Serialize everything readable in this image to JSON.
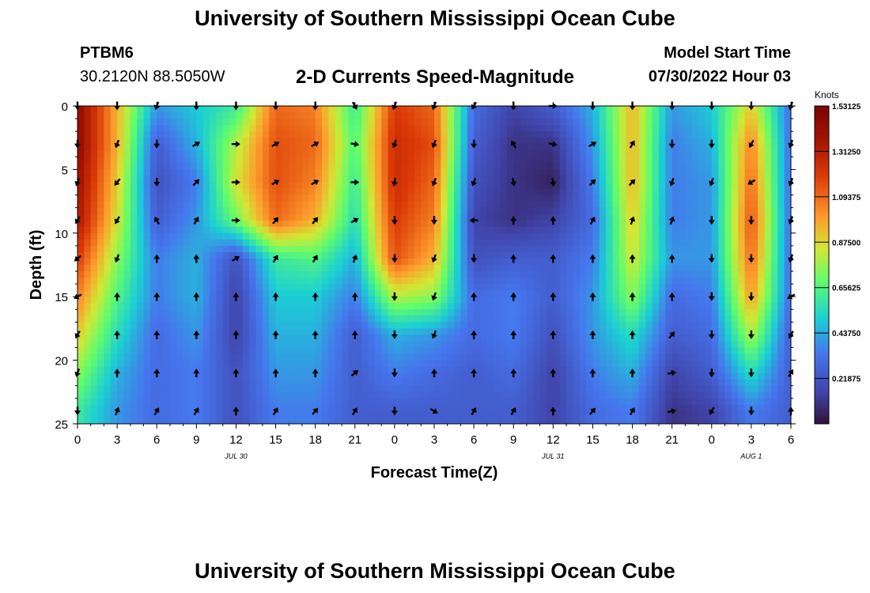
{
  "header": {
    "title": "University of Southern Mississippi Ocean Cube",
    "station_id": "PTBM6",
    "station_coords": "30.2120N  88.5050W",
    "subtitle": "2-D Currents Speed-Magnitude",
    "model_label": "Model Start Time",
    "model_time": "07/30/2022 Hour 03"
  },
  "footer": {
    "title": "University of Southern Mississippi Ocean Cube"
  },
  "chart_data": {
    "type": "heatmap",
    "title": "2-D Currents Speed-Magnitude",
    "xlabel": "Forecast Time(Z)",
    "ylabel": "Depth (ft)",
    "xlim": [
      0,
      54
    ],
    "ylim": [
      0,
      25
    ],
    "x_ticks": [
      0,
      3,
      6,
      9,
      12,
      15,
      18,
      21,
      24,
      27,
      30,
      33,
      36,
      39,
      42,
      45,
      48,
      51,
      54
    ],
    "x_tick_labels": [
      "0",
      "3",
      "6",
      "9",
      "12",
      "15",
      "18",
      "21",
      "0",
      "3",
      "6",
      "9",
      "12",
      "15",
      "18",
      "21",
      "0",
      "3",
      "6"
    ],
    "y_ticks": [
      0,
      5,
      10,
      15,
      20,
      25
    ],
    "y_tick_labels": [
      "0",
      "5",
      "10",
      "15",
      "20",
      "25"
    ],
    "date_labels": [
      {
        "text": "JUL 30",
        "x": 12
      },
      {
        "text": "JUL 31",
        "x": 36
      },
      {
        "text": "AUG 1",
        "x": 51
      }
    ],
    "colorbar": {
      "title": "Knots",
      "vmin": 0,
      "vmax": 1.53125,
      "ticks": [
        1.53125,
        1.3125,
        1.09375,
        0.875,
        0.65625,
        0.4375,
        0.21875
      ],
      "tick_labels": [
        "1.53125",
        "1.31250",
        "1.09375",
        "0.87500",
        "0.65625",
        "0.43750",
        "0.21875"
      ]
    },
    "time_columns": [
      0,
      3,
      6,
      9,
      12,
      15,
      18,
      21,
      24,
      27,
      30,
      33,
      36,
      39,
      42,
      45,
      48,
      51,
      54
    ],
    "depth_rows": [
      0,
      3,
      6,
      9,
      12,
      15,
      18,
      21,
      24
    ],
    "speed_knots": [
      [
        1.45,
        0.95,
        0.4,
        0.5,
        0.6,
        1.1,
        1.05,
        0.6,
        1.2,
        1.1,
        0.3,
        0.15,
        0.25,
        0.45,
        0.95,
        0.4,
        0.5,
        0.9,
        0.3
      ],
      [
        1.45,
        0.95,
        0.25,
        0.45,
        0.8,
        1.15,
        1.1,
        0.65,
        1.25,
        1.15,
        0.25,
        0.1,
        0.1,
        0.4,
        0.95,
        0.35,
        0.45,
        1.05,
        0.3
      ],
      [
        1.4,
        0.9,
        0.2,
        0.35,
        0.85,
        1.15,
        1.05,
        0.6,
        1.25,
        1.1,
        0.2,
        0.1,
        0.05,
        0.35,
        0.95,
        0.35,
        0.4,
        1.1,
        0.3
      ],
      [
        1.35,
        0.85,
        0.25,
        0.4,
        0.7,
        1.1,
        0.95,
        0.55,
        1.2,
        1.05,
        0.15,
        0.1,
        0.15,
        0.3,
        0.9,
        0.35,
        0.4,
        1.15,
        0.3
      ],
      [
        1.2,
        0.75,
        0.35,
        0.45,
        0.2,
        0.6,
        0.65,
        0.45,
        1.15,
        0.95,
        0.2,
        0.25,
        0.25,
        0.35,
        0.85,
        0.4,
        0.4,
        1.1,
        0.3
      ],
      [
        1.05,
        0.65,
        0.35,
        0.45,
        0.15,
        0.5,
        0.5,
        0.35,
        0.8,
        0.75,
        0.3,
        0.35,
        0.25,
        0.4,
        0.75,
        0.3,
        0.35,
        1.0,
        0.3
      ],
      [
        0.9,
        0.55,
        0.3,
        0.4,
        0.15,
        0.45,
        0.45,
        0.25,
        0.45,
        0.4,
        0.3,
        0.35,
        0.2,
        0.4,
        0.55,
        0.25,
        0.3,
        0.8,
        0.25
      ],
      [
        0.75,
        0.45,
        0.3,
        0.35,
        0.2,
        0.4,
        0.4,
        0.25,
        0.35,
        0.3,
        0.25,
        0.3,
        0.15,
        0.35,
        0.45,
        0.15,
        0.25,
        0.55,
        0.25
      ],
      [
        0.6,
        0.4,
        0.3,
        0.35,
        0.2,
        0.35,
        0.35,
        0.25,
        0.25,
        0.25,
        0.25,
        0.25,
        0.15,
        0.3,
        0.35,
        0.1,
        0.15,
        0.35,
        0.25
      ]
    ],
    "vector_direction_deg": [
      [
        180,
        180,
        200,
        180,
        180,
        180,
        180,
        150,
        200,
        200,
        210,
        180,
        90,
        180,
        180,
        180,
        180,
        180,
        200
      ],
      [
        180,
        200,
        180,
        60,
        90,
        60,
        60,
        100,
        200,
        200,
        180,
        330,
        100,
        60,
        30,
        180,
        180,
        210,
        200
      ],
      [
        200,
        220,
        180,
        45,
        90,
        60,
        60,
        90,
        190,
        200,
        200,
        170,
        170,
        45,
        45,
        200,
        200,
        240,
        200
      ],
      [
        210,
        210,
        330,
        30,
        90,
        40,
        40,
        60,
        180,
        180,
        270,
        0,
        0,
        30,
        20,
        20,
        180,
        180,
        200
      ],
      [
        230,
        200,
        0,
        0,
        60,
        30,
        30,
        20,
        180,
        200,
        180,
        0,
        0,
        0,
        0,
        0,
        180,
        180,
        200
      ],
      [
        240,
        0,
        0,
        0,
        0,
        0,
        0,
        0,
        180,
        200,
        0,
        0,
        0,
        0,
        0,
        0,
        180,
        180,
        240
      ],
      [
        210,
        0,
        0,
        0,
        0,
        0,
        0,
        0,
        180,
        200,
        0,
        0,
        0,
        0,
        0,
        40,
        180,
        180,
        210
      ],
      [
        200,
        0,
        0,
        0,
        0,
        0,
        0,
        50,
        180,
        0,
        0,
        0,
        0,
        0,
        0,
        80,
        180,
        180,
        30
      ],
      [
        180,
        20,
        30,
        30,
        0,
        30,
        40,
        30,
        180,
        120,
        30,
        30,
        0,
        40,
        30,
        80,
        210,
        180,
        0
      ]
    ]
  }
}
